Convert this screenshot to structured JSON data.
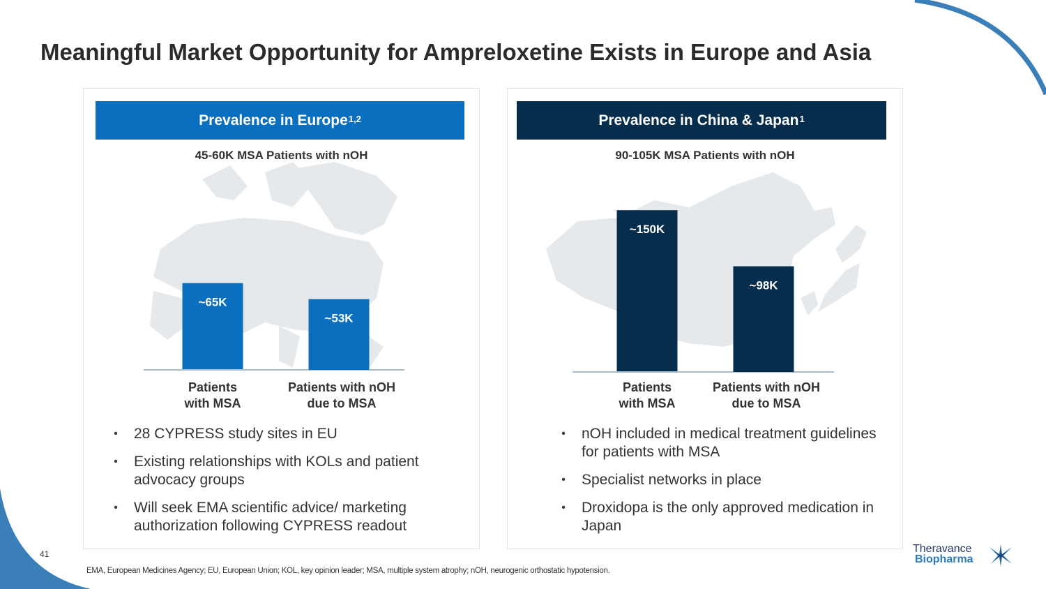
{
  "slide": {
    "title": "Meaningful Market Opportunity for Ampreloxetine Exists in Europe and Asia",
    "page_number": "41",
    "footnote": "EMA, European Medicines Agency; EU, European Union; KOL, key opinion leader; MSA, multiple system atrophy; nOH, neurogenic orthostatic hypotension."
  },
  "colors": {
    "europe_blue": "#0a6fbe",
    "asia_navy": "#072d4d",
    "map_gray": "#e6e9ec",
    "axis_line": "#a9bccb",
    "decor_blue": "#2a7bc0"
  },
  "europe": {
    "header": "Prevalence in Europe",
    "header_sup": "1,2",
    "subtitle": "45-60K MSA Patients with nOH",
    "bullets": [
      "28 CYPRESS study sites in EU",
      "Existing relationships with KOLs and patient advocacy groups",
      "Will seek EMA scientific advice/ marketing authorization following CYPRESS readout"
    ]
  },
  "asia": {
    "header": "Prevalence in China & Japan",
    "header_sup": "1",
    "subtitle": "90-105K MSA Patients with nOH",
    "bullets": [
      "nOH included in medical treatment guidelines for patients with MSA",
      "Specialist networks in place",
      "Droxidopa is the only approved medication in Japan"
    ]
  },
  "chart_data": [
    {
      "type": "bar",
      "title": "Prevalence in Europe",
      "categories": [
        [
          "Patients",
          "with MSA"
        ],
        [
          "Patients with nOH",
          "due to MSA"
        ]
      ],
      "values": [
        65,
        53
      ],
      "data_labels": [
        "~65K",
        "~53K"
      ],
      "unit": "thousand patients",
      "ylim": [
        0,
        115
      ],
      "grid": false,
      "color": "#0a6fbe"
    },
    {
      "type": "bar",
      "title": "Prevalence in China & Japan",
      "categories": [
        [
          "Patients",
          "with MSA"
        ],
        [
          "Patients with nOH",
          "due to MSA"
        ]
      ],
      "values": [
        150,
        98
      ],
      "data_labels": [
        "~150K",
        "~98K"
      ],
      "unit": "thousand patients",
      "ylim": [
        0,
        165
      ],
      "grid": false,
      "color": "#072d4d"
    }
  ],
  "logo": {
    "line1": "Theravance",
    "line2": "Biopharma"
  }
}
